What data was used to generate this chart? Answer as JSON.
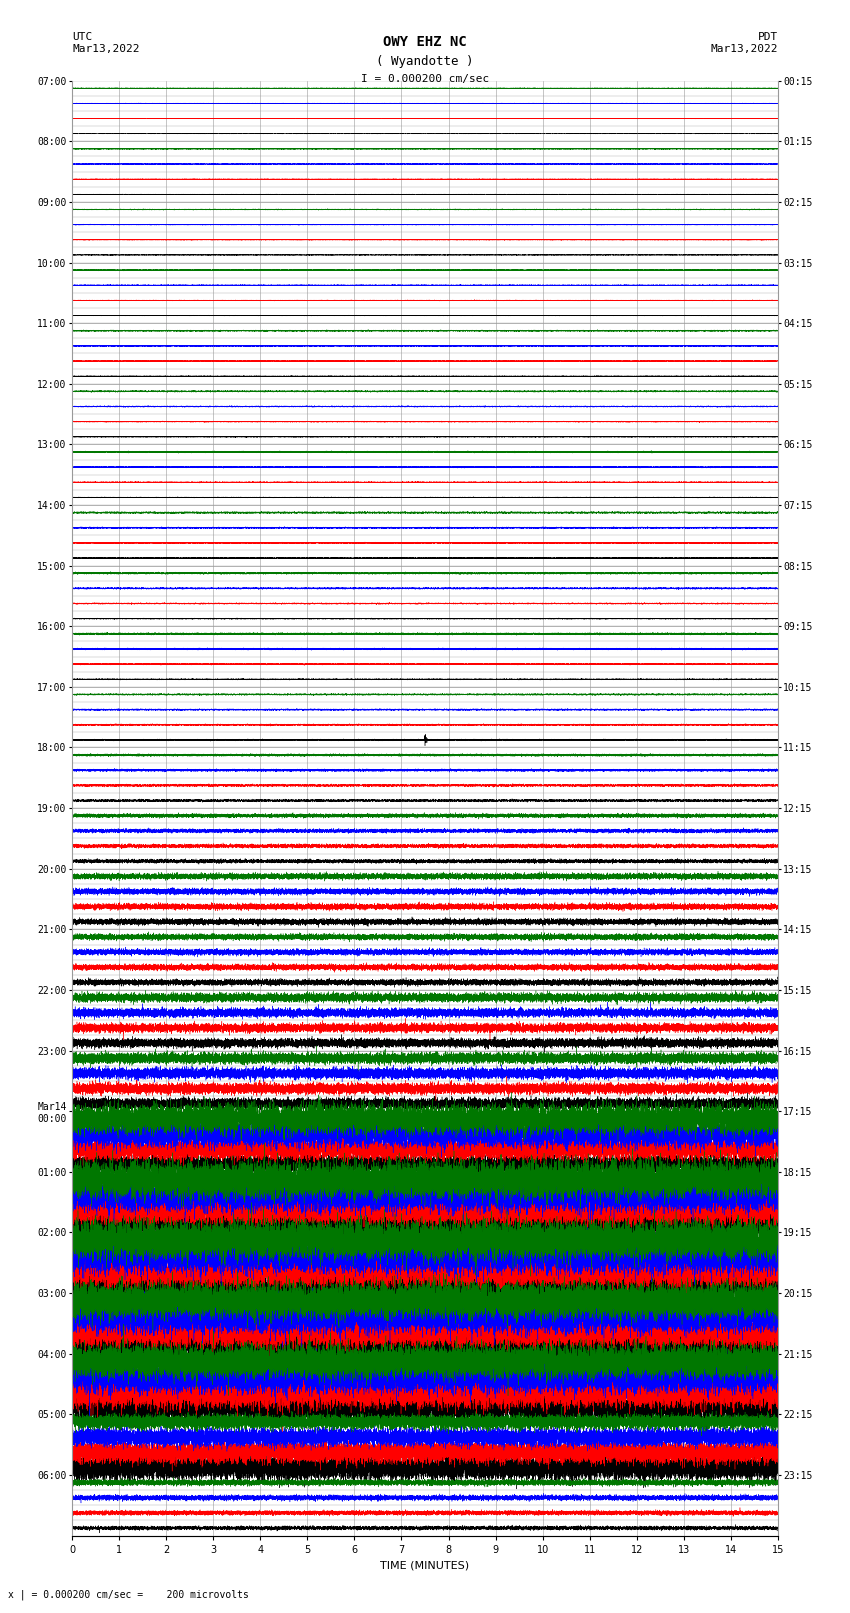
{
  "title_line1": "OWY EHZ NC",
  "title_line2": "( Wyandotte )",
  "scale_label": "I = 0.000200 cm/sec",
  "utc_label": "UTC\nMar13,2022",
  "pdt_label": "PDT\nMar13,2022",
  "xlabel": "TIME (MINUTES)",
  "footer_label": "x | = 0.000200 cm/sec =    200 microvolts",
  "left_times": [
    "07:00",
    "08:00",
    "09:00",
    "10:00",
    "11:00",
    "12:00",
    "13:00",
    "14:00",
    "15:00",
    "16:00",
    "17:00",
    "18:00",
    "19:00",
    "20:00",
    "21:00",
    "22:00",
    "23:00",
    "Mar14\n00:00",
    "01:00",
    "02:00",
    "03:00",
    "04:00",
    "05:00",
    "06:00"
  ],
  "right_times": [
    "00:15",
    "01:15",
    "02:15",
    "03:15",
    "04:15",
    "05:15",
    "06:15",
    "07:15",
    "08:15",
    "09:15",
    "10:15",
    "11:15",
    "12:15",
    "13:15",
    "14:15",
    "15:15",
    "16:15",
    "17:15",
    "18:15",
    "19:15",
    "20:15",
    "21:15",
    "22:15",
    "23:15"
  ],
  "n_rows": 24,
  "n_subtraces": 4,
  "n_minutes": 15,
  "sample_rate": 40,
  "bg_color": "#ffffff",
  "grid_color": "#999999",
  "signal_colors": [
    "#000000",
    "#ff0000",
    "#0000ff",
    "#007700"
  ],
  "title_fontsize": 10,
  "label_fontsize": 8,
  "tick_fontsize": 7
}
